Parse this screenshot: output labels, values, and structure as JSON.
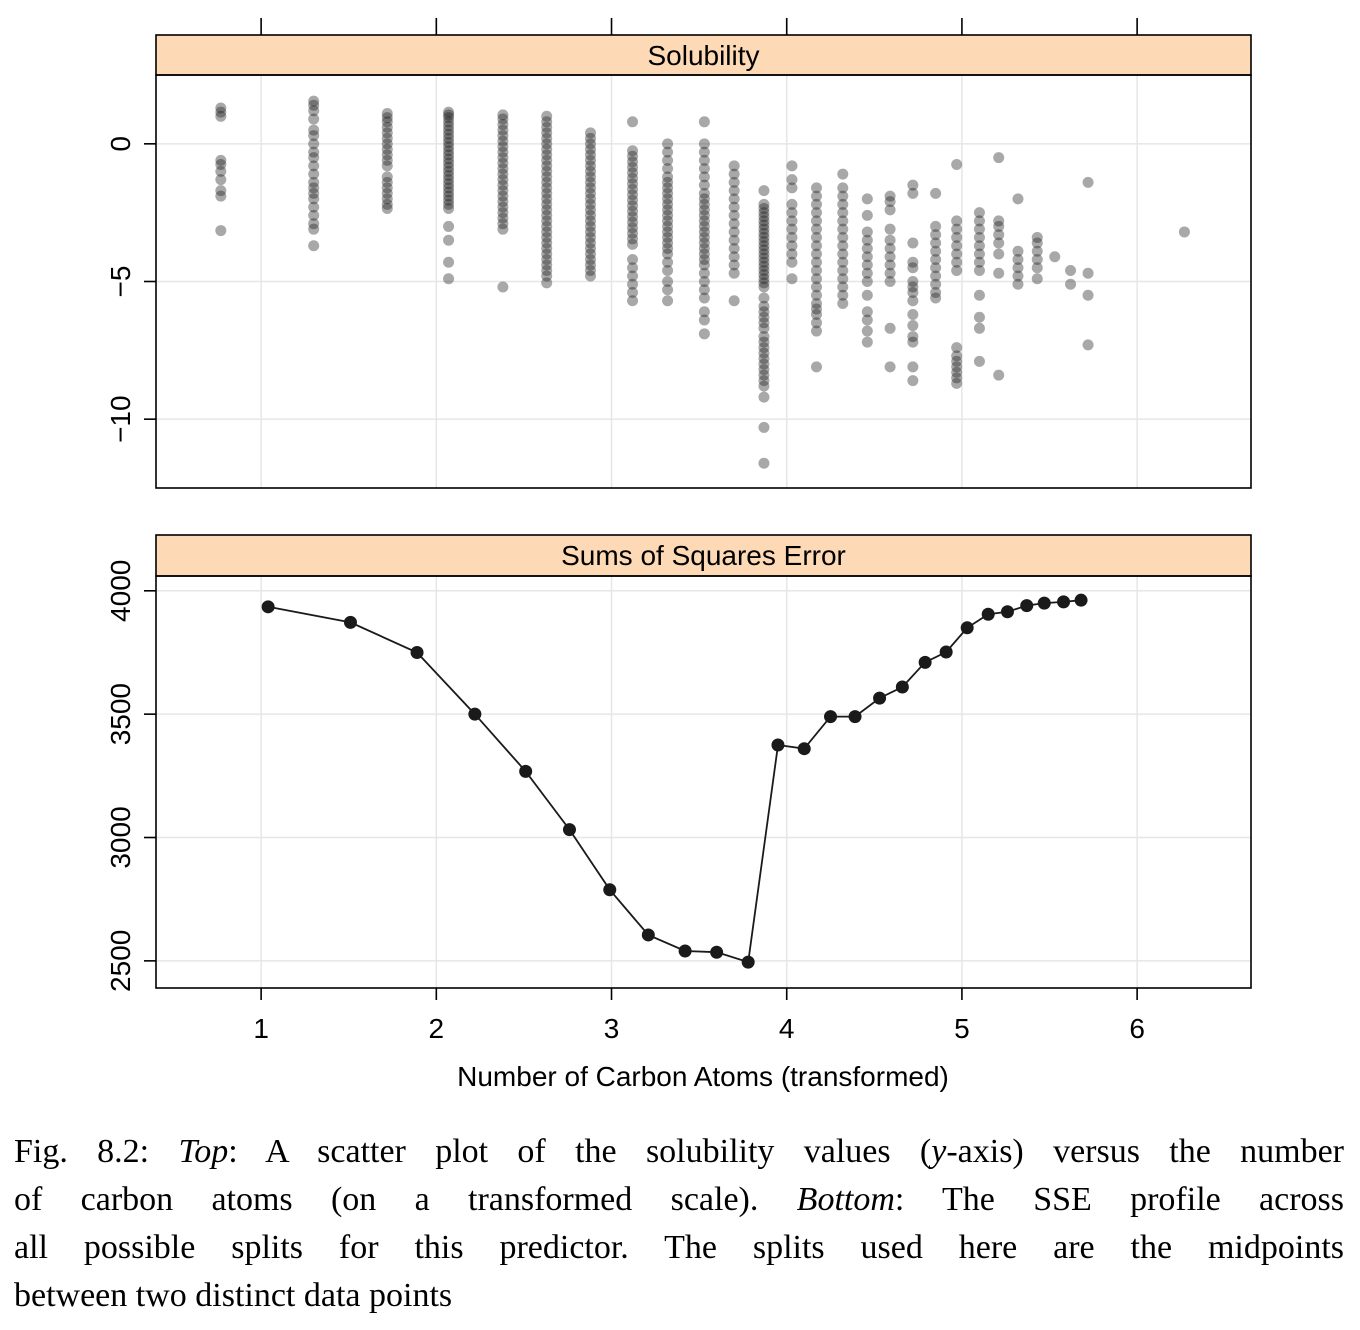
{
  "chart_data": [
    {
      "type": "scatter",
      "panel": "top",
      "title": "Solubility",
      "xlabel": "Number of Carbon Atoms (transformed)",
      "ylabel": "",
      "xlim": [
        0.4,
        6.65
      ],
      "ylim": [
        -12.5,
        2.5
      ],
      "x_ticks": [
        1,
        2,
        3,
        4,
        5,
        6
      ],
      "y_ticks": [
        0,
        -5,
        -10
      ],
      "y_tick_labels": [
        "0",
        "−5",
        "−10"
      ],
      "grid": true,
      "point_color": "#1a1a1a",
      "point_opacity": 0.38,
      "groups": [
        {
          "x": 0.77,
          "y": [
            1.3,
            1.15,
            1.0,
            -0.6,
            -0.75,
            -1.0,
            -1.3,
            -1.7,
            -1.9,
            -3.15
          ]
        },
        {
          "x": 1.3,
          "y": [
            1.55,
            1.4,
            1.2,
            0.9,
            0.5,
            0.3,
            0.0,
            -0.3,
            -0.5,
            -0.8,
            -1.1,
            -1.4,
            -1.6,
            -1.8,
            -2.0,
            -2.3,
            -2.6,
            -2.9,
            -3.1,
            -3.7
          ]
        },
        {
          "x": 1.72,
          "y": [
            1.1,
            0.95,
            0.8,
            0.6,
            0.4,
            0.2,
            0.0,
            -0.2,
            -0.4,
            -0.6,
            -0.8,
            -1.2,
            -1.4,
            -1.6,
            -1.8,
            -2.0,
            -2.2,
            -2.35
          ]
        },
        {
          "x": 2.07,
          "y": [
            1.15,
            1.05,
            0.95,
            0.8,
            0.65,
            0.5,
            0.35,
            0.2,
            0.05,
            -0.1,
            -0.25,
            -0.4,
            -0.55,
            -0.7,
            -0.85,
            -1.0,
            -1.15,
            -1.3,
            -1.45,
            -1.6,
            -1.75,
            -1.9,
            -2.05,
            -2.2,
            -2.35,
            -3.0,
            -3.5,
            -4.3,
            -4.9
          ]
        },
        {
          "x": 2.38,
          "y": [
            1.05,
            0.9,
            0.7,
            0.5,
            0.3,
            0.1,
            -0.1,
            -0.3,
            -0.5,
            -0.7,
            -0.9,
            -1.1,
            -1.3,
            -1.5,
            -1.7,
            -1.9,
            -2.1,
            -2.3,
            -2.5,
            -2.7,
            -2.9,
            -3.1,
            -5.2
          ]
        },
        {
          "x": 2.63,
          "y": [
            1.0,
            0.8,
            0.6,
            0.4,
            0.2,
            0.0,
            -0.2,
            -0.4,
            -0.6,
            -0.8,
            -1.0,
            -1.2,
            -1.4,
            -1.6,
            -1.8,
            -2.0,
            -2.2,
            -2.4,
            -2.6,
            -2.8,
            -3.0,
            -3.2,
            -3.4,
            -3.6,
            -3.8,
            -4.0,
            -4.2,
            -4.4,
            -4.6,
            -4.8,
            -5.05
          ]
        },
        {
          "x": 2.88,
          "y": [
            0.4,
            0.2,
            0.0,
            -0.2,
            -0.4,
            -0.6,
            -0.8,
            -1.0,
            -1.2,
            -1.4,
            -1.6,
            -1.8,
            -2.0,
            -2.2,
            -2.4,
            -2.6,
            -2.8,
            -3.0,
            -3.2,
            -3.4,
            -3.6,
            -3.8,
            -4.0,
            -4.2,
            -4.4,
            -4.6,
            -4.8
          ]
        },
        {
          "x": 3.12,
          "y": [
            0.8,
            -0.25,
            -0.45,
            -0.65,
            -0.85,
            -1.05,
            -1.25,
            -1.45,
            -1.65,
            -1.85,
            -2.05,
            -2.25,
            -2.45,
            -2.65,
            -2.85,
            -3.05,
            -3.25,
            -3.45,
            -3.65,
            -4.2,
            -4.5,
            -4.8,
            -5.1,
            -5.4,
            -5.7
          ]
        },
        {
          "x": 3.32,
          "y": [
            0.0,
            -0.3,
            -0.6,
            -0.9,
            -1.2,
            -1.4,
            -1.6,
            -1.8,
            -2.0,
            -2.2,
            -2.4,
            -2.6,
            -2.8,
            -3.0,
            -3.2,
            -3.4,
            -3.6,
            -3.8,
            -4.0,
            -4.3,
            -4.6,
            -5.0,
            -5.3,
            -5.7
          ]
        },
        {
          "x": 3.53,
          "y": [
            0.8,
            0.0,
            -0.3,
            -0.6,
            -0.9,
            -1.2,
            -1.5,
            -1.8,
            -2.0,
            -2.2,
            -2.4,
            -2.6,
            -2.8,
            -3.0,
            -3.2,
            -3.4,
            -3.6,
            -3.8,
            -4.0,
            -4.2,
            -4.4,
            -4.7,
            -5.0,
            -5.3,
            -5.6,
            -6.1,
            -6.4,
            -6.9
          ]
        },
        {
          "x": 3.7,
          "y": [
            -0.8,
            -1.1,
            -1.4,
            -1.7,
            -2.0,
            -2.3,
            -2.6,
            -2.9,
            -3.2,
            -3.5,
            -3.8,
            -4.1,
            -4.4,
            -4.7,
            -5.7
          ]
        },
        {
          "x": 3.87,
          "y": [
            -1.7,
            -2.2,
            -2.35,
            -2.5,
            -2.65,
            -2.8,
            -2.95,
            -3.1,
            -3.25,
            -3.4,
            -3.55,
            -3.7,
            -3.85,
            -4.0,
            -4.15,
            -4.3,
            -4.45,
            -4.6,
            -4.75,
            -4.9,
            -5.05,
            -5.2,
            -5.6,
            -5.9,
            -6.1,
            -6.3,
            -6.5,
            -6.7,
            -7.0,
            -7.2,
            -7.4,
            -7.6,
            -7.8,
            -8.0,
            -8.2,
            -8.4,
            -8.6,
            -8.8,
            -9.2,
            -10.3,
            -11.6
          ]
        },
        {
          "x": 4.03,
          "y": [
            -0.8,
            -1.3,
            -1.6,
            -2.2,
            -2.5,
            -2.8,
            -3.1,
            -3.4,
            -3.7,
            -4.0,
            -4.3,
            -4.9
          ]
        },
        {
          "x": 4.17,
          "y": [
            -1.6,
            -1.9,
            -2.2,
            -2.5,
            -2.8,
            -3.1,
            -3.4,
            -3.7,
            -4.0,
            -4.3,
            -4.6,
            -4.9,
            -5.2,
            -5.5,
            -5.8,
            -6.0,
            -6.2,
            -6.5,
            -6.8,
            -8.1
          ]
        },
        {
          "x": 4.32,
          "y": [
            -1.1,
            -1.6,
            -1.9,
            -2.2,
            -2.5,
            -2.8,
            -3.1,
            -3.4,
            -3.7,
            -4.0,
            -4.3,
            -4.6,
            -4.9,
            -5.2,
            -5.5,
            -5.8
          ]
        },
        {
          "x": 4.46,
          "y": [
            -2.0,
            -2.6,
            -3.2,
            -3.5,
            -3.8,
            -4.1,
            -4.4,
            -4.7,
            -5.0,
            -5.5,
            -6.1,
            -6.4,
            -6.8,
            -7.2
          ]
        },
        {
          "x": 4.59,
          "y": [
            -1.9,
            -2.1,
            -2.4,
            -3.1,
            -3.5,
            -3.8,
            -4.1,
            -4.4,
            -4.7,
            -5.0,
            -6.7,
            -8.1
          ]
        },
        {
          "x": 4.72,
          "y": [
            -1.5,
            -1.8,
            -3.6,
            -4.3,
            -4.5,
            -5.0,
            -5.2,
            -5.4,
            -5.7,
            -6.2,
            -6.6,
            -7.0,
            -7.2,
            -8.1,
            -8.6
          ]
        },
        {
          "x": 4.85,
          "y": [
            -1.8,
            -3.0,
            -3.3,
            -3.6,
            -3.9,
            -4.2,
            -4.5,
            -4.8,
            -5.1,
            -5.4,
            -5.6
          ]
        },
        {
          "x": 4.97,
          "y": [
            -0.75,
            -2.8,
            -3.1,
            -3.4,
            -3.7,
            -4.0,
            -4.3,
            -4.6,
            -7.4,
            -7.7,
            -7.9,
            -8.1,
            -8.3,
            -8.5,
            -8.7
          ]
        },
        {
          "x": 5.1,
          "y": [
            -2.5,
            -2.8,
            -3.1,
            -3.4,
            -3.7,
            -4.0,
            -4.3,
            -4.6,
            -5.5,
            -6.3,
            -6.7,
            -7.9
          ]
        },
        {
          "x": 5.21,
          "y": [
            -0.5,
            -2.8,
            -3.0,
            -3.3,
            -3.6,
            -4.0,
            -4.7,
            -8.4
          ]
        },
        {
          "x": 5.32,
          "y": [
            -2.0,
            -3.9,
            -4.2,
            -4.5,
            -4.8,
            -5.1
          ]
        },
        {
          "x": 5.43,
          "y": [
            -3.4,
            -3.6,
            -3.9,
            -4.2,
            -4.5,
            -4.9
          ]
        },
        {
          "x": 5.53,
          "y": [
            -4.1
          ]
        },
        {
          "x": 5.62,
          "y": [
            -4.6,
            -5.1
          ]
        },
        {
          "x": 5.72,
          "y": [
            -1.4,
            -4.7,
            -5.5,
            -7.3
          ]
        },
        {
          "x": 6.27,
          "y": [
            -3.2
          ]
        }
      ]
    },
    {
      "type": "line",
      "panel": "bottom",
      "title": "Sums of Squares Error",
      "xlabel": "Number of Carbon Atoms (transformed)",
      "ylabel": "",
      "xlim": [
        0.4,
        6.65
      ],
      "ylim": [
        2390,
        4060
      ],
      "x_ticks": [
        1,
        2,
        3,
        4,
        5,
        6
      ],
      "y_ticks": [
        2500,
        3000,
        3500,
        4000
      ],
      "grid": true,
      "markers": true,
      "line_color": "#1a1a1a",
      "x": [
        1.04,
        1.51,
        1.89,
        2.22,
        2.51,
        2.76,
        2.99,
        3.21,
        3.42,
        3.6,
        3.78,
        3.95,
        4.1,
        4.25,
        4.39,
        4.53,
        4.66,
        4.79,
        4.91,
        5.03,
        5.15,
        5.26,
        5.37,
        5.47,
        5.58,
        5.68
      ],
      "y": [
        3935,
        3872,
        3750,
        3500,
        3268,
        3032,
        2788,
        2605,
        2540,
        2535,
        2495,
        3375,
        3360,
        3490,
        3490,
        3565,
        3610,
        3710,
        3752,
        3850,
        3905,
        3915,
        3940,
        3950,
        3955,
        3962
      ]
    }
  ],
  "caption": {
    "lines": [
      [
        {
          "t": "Fig. 8.2: "
        },
        {
          "t": "Top",
          "em": true
        },
        {
          "t": ": A scatter plot of the solubility values ("
        },
        {
          "t": "y",
          "em": true
        },
        {
          "t": "-axis) versus the number"
        }
      ],
      [
        {
          "t": "of carbon atoms (on a transformed scale). "
        },
        {
          "t": "Bottom",
          "em": true
        },
        {
          "t": ": The SSE profile across"
        }
      ],
      [
        {
          "t": "all possible splits for this predictor. The splits used here are the midpoints"
        }
      ],
      [
        {
          "t": "between two distinct data points"
        }
      ]
    ]
  },
  "colors": {
    "strip_fill": "#fdd9b5",
    "grid": "#e6e6e6",
    "frame": "#000000"
  }
}
